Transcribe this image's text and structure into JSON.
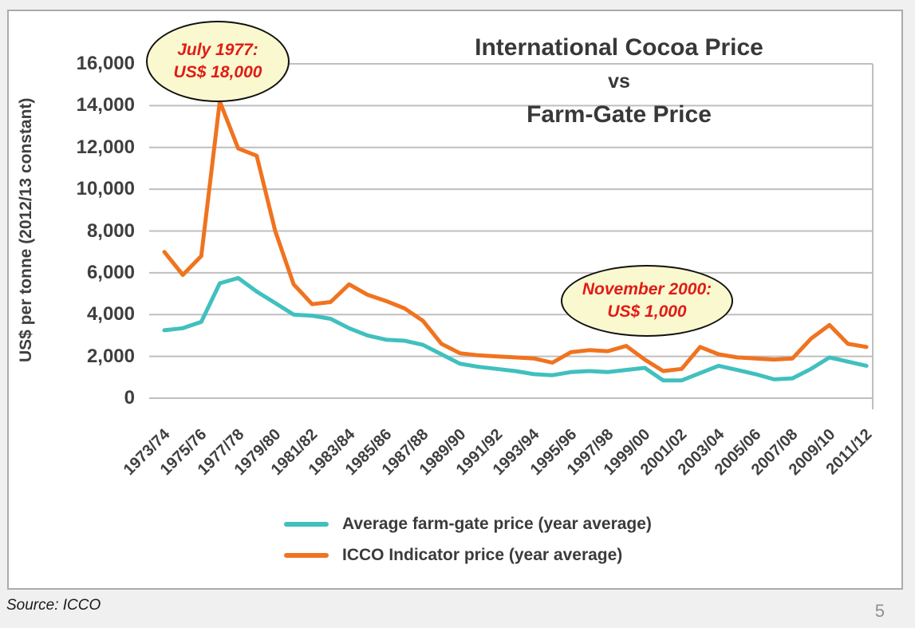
{
  "page": {
    "source_label": "Source: ICCO",
    "page_number": "5"
  },
  "chart_data": {
    "type": "line",
    "title": "International Cocoa Price vs Farm-Gate Price",
    "title_lines": {
      "line1": "International Cocoa Price",
      "line2": "vs",
      "line3": "Farm-Gate Price"
    },
    "ylabel": "US$ per tonne (2012/13 constant)",
    "ylim": [
      0,
      16000
    ],
    "ytick_step": 2000,
    "ytick_labels": [
      "0",
      "2,000",
      "4,000",
      "6,000",
      "8,000",
      "10,000",
      "12,000",
      "14,000",
      "16,000"
    ],
    "x_categories": [
      "1973/74",
      "1974/75",
      "1975/76",
      "1976/77",
      "1977/78",
      "1978/79",
      "1979/80",
      "1980/81",
      "1981/82",
      "1982/83",
      "1983/84",
      "1984/85",
      "1985/86",
      "1986/87",
      "1987/88",
      "1988/89",
      "1989/90",
      "1990/91",
      "1991/92",
      "1992/93",
      "1993/94",
      "1994/95",
      "1995/96",
      "1996/97",
      "1997/98",
      "1998/99",
      "1999/00",
      "2000/01",
      "2001/02",
      "2002/03",
      "2003/04",
      "2004/05",
      "2005/06",
      "2006/07",
      "2007/08",
      "2008/09",
      "2009/10",
      "2010/11",
      "2011/12"
    ],
    "xtick_labels": [
      "1973/74",
      "1975/76",
      "1977/78",
      "1979/80",
      "1981/82",
      "1983/84",
      "1985/86",
      "1987/88",
      "1989/90",
      "1991/92",
      "1993/94",
      "1995/96",
      "1997/98",
      "1999/00",
      "2001/02",
      "2003/04",
      "2005/06",
      "2007/08",
      "2009/10",
      "2011/12"
    ],
    "grid": "horizontal",
    "grid_color": "#bfbfbf",
    "legend_position": "bottom",
    "series": [
      {
        "name": "Average farm-gate price (year average)",
        "color": "#40c0be",
        "values": [
          3250,
          3350,
          3650,
          5500,
          5750,
          5100,
          4550,
          4000,
          3950,
          3800,
          3350,
          3000,
          2800,
          2750,
          2550,
          2100,
          1650,
          1500,
          1400,
          1300,
          1150,
          1100,
          1250,
          1300,
          1250,
          1350,
          1450,
          850,
          850,
          1200,
          1550,
          1350,
          1150,
          900,
          950,
          1400,
          1950,
          1750,
          1550
        ]
      },
      {
        "name": "ICCO Indicator price (year average)",
        "color": "#f0731f",
        "values": [
          7000,
          5900,
          6800,
          14200,
          11950,
          11600,
          8000,
          5450,
          4500,
          4600,
          5450,
          4950,
          4650,
          4300,
          3700,
          2600,
          2150,
          2050,
          2000,
          1950,
          1900,
          1700,
          2200,
          2300,
          2250,
          2500,
          1850,
          1300,
          1400,
          2450,
          2100,
          1950,
          1900,
          1850,
          1900,
          2850,
          3500,
          2600,
          2450
        ]
      }
    ],
    "annotations": [
      {
        "line1": "July 1977:",
        "line2": "US$ 18,000",
        "color": "#e11b17"
      },
      {
        "line1": "November 2000:",
        "line2": "US$ 1,000",
        "color": "#e11b17"
      }
    ]
  }
}
